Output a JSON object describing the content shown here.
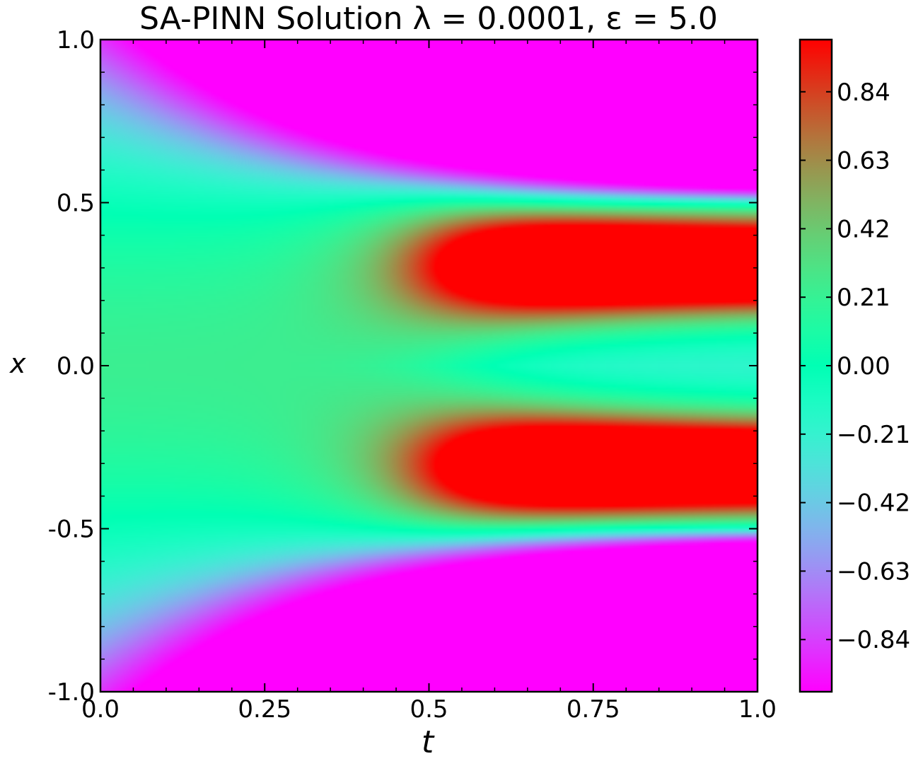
{
  "chart_data": {
    "type": "heatmap",
    "title": "SA-PINN Solution λ = 0.0001, ε = 5.0",
    "xlabel": "t",
    "ylabel": "x",
    "xlim": [
      0.0,
      1.0
    ],
    "ylim": [
      -1.0,
      1.0
    ],
    "x_ticks": [
      0.0,
      0.25,
      0.5,
      0.75,
      1.0
    ],
    "x_tick_labels": [
      "0.0",
      "0.25",
      "0.5",
      "0.75",
      "1.0"
    ],
    "y_ticks": [
      -1.0,
      -0.5,
      0.0,
      0.5,
      1.0
    ],
    "y_tick_labels": [
      "-1.0",
      "-0.5",
      "0.0",
      "0.5",
      "1.0"
    ],
    "colormap": "rainbow",
    "value_range": [
      -1.0,
      1.0
    ],
    "colorbar_ticks": [
      0.84,
      0.63,
      0.42,
      0.21,
      0.0,
      -0.21,
      -0.42,
      -0.63,
      -0.84
    ],
    "colorbar_tick_labels": [
      "0.84",
      "0.63",
      "0.42",
      "0.21",
      "0.00",
      "−0.21",
      "−0.42",
      "−0.63",
      "−0.84"
    ],
    "field_description": "u(t,x) starts near 0.2·x^2-like profile, develops two stable phases u≈1 near x≈±0.3 and u≈-1 for |x|>0.5 with sharp interfaces at x≈±0.51",
    "colors": {
      "min": "#8000ff",
      "mid": "#80ffb4",
      "max": "#ff0000"
    }
  }
}
